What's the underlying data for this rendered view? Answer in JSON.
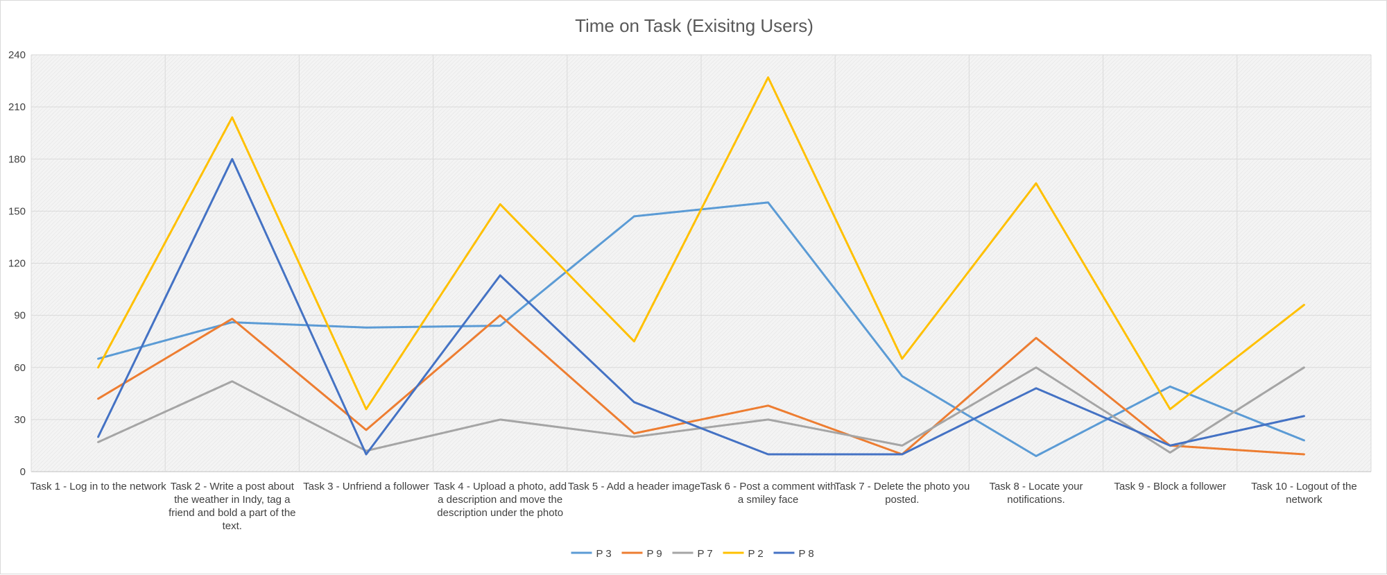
{
  "chart_data": {
    "type": "line",
    "title": "Time on Task (Exisitng Users)",
    "xlabel": "",
    "ylabel": "",
    "ylim": [
      0,
      240
    ],
    "yticks": [
      0,
      30,
      60,
      90,
      120,
      150,
      180,
      210,
      240
    ],
    "grid": true,
    "legend_position": "bottom",
    "categories": [
      "Task 1 - Log in to the network",
      "Task 2 - Write a post about the weather in Indy, tag a friend and bold a part of the text.",
      "Task 3 - Unfriend a follower",
      "Task 4 - Upload a photo, add a description and move the description under the photo",
      "Task 5 - Add a header image",
      "Task 6 - Post a comment with a smiley face",
      "Task 7 - Delete the photo you posted.",
      "Task 8 - Locate your notifications.",
      "Task 9 - Block a follower",
      "Task 10 - Logout of the network"
    ],
    "category_label_lines": [
      [
        "Task 1 - Log in to the network"
      ],
      [
        "Task 2 - Write a post about",
        "the weather in Indy, tag a",
        "friend and bold a part of the",
        "text."
      ],
      [
        "Task 3 - Unfriend a follower"
      ],
      [
        "Task 4 - Upload a photo, add",
        "a description and move the",
        "description under the photo"
      ],
      [
        "Task 5 - Add a header image"
      ],
      [
        "Task 6 - Post a comment with",
        "a smiley face"
      ],
      [
        "Task 7 - Delete the photo you",
        "posted."
      ],
      [
        "Task 8 - Locate your",
        "notifications."
      ],
      [
        "Task 9 - Block a follower"
      ],
      [
        "Task 10 - Logout of the",
        "network"
      ]
    ],
    "series": [
      {
        "name": "P 3",
        "color": "#5B9BD5",
        "values": [
          65,
          86,
          83,
          84,
          147,
          155,
          55,
          9,
          49,
          18
        ]
      },
      {
        "name": "P 9",
        "color": "#ED7D31",
        "values": [
          42,
          88,
          24,
          90,
          22,
          38,
          10,
          77,
          15,
          10
        ]
      },
      {
        "name": "P 7",
        "color": "#A5A5A5",
        "values": [
          17,
          52,
          12,
          30,
          20,
          30,
          15,
          60,
          11,
          60
        ]
      },
      {
        "name": "P 2",
        "color": "#FFC000",
        "values": [
          60,
          204,
          36,
          154,
          75,
          227,
          65,
          166,
          36,
          96
        ]
      },
      {
        "name": "P 8",
        "color": "#4472C4",
        "values": [
          20,
          180,
          10,
          113,
          40,
          10,
          10,
          48,
          15,
          32
        ]
      }
    ]
  }
}
